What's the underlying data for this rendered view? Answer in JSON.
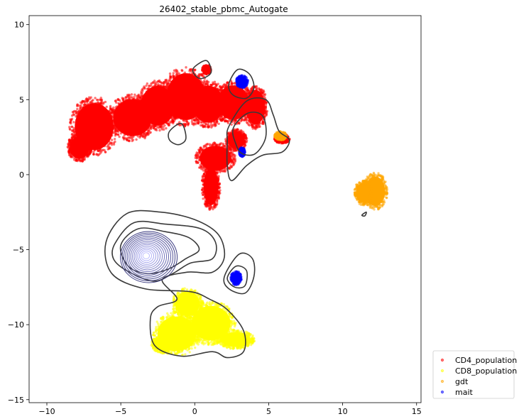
{
  "chart_data": {
    "type": "scatter",
    "title": "26402_stable_pbmc_Autogate",
    "xlabel": "",
    "ylabel": "",
    "xlim": [
      -11.2,
      15.3
    ],
    "ylim": [
      -15.2,
      10.6
    ],
    "xticks": [
      -10,
      -5,
      0,
      5,
      10,
      15
    ],
    "yticks": [
      -15,
      -10,
      -5,
      0,
      5,
      10
    ],
    "xtick_labels": [
      "−10",
      "−5",
      "0",
      "5",
      "10",
      "15"
    ],
    "ytick_labels": [
      "−15",
      "−10",
      "−5",
      "0",
      "5",
      "10"
    ],
    "grid": false,
    "legend_position": "lower-right outside",
    "series": [
      {
        "name": "CD4_population",
        "color": "#ff0000",
        "regions": [
          {
            "cx": -6.8,
            "cy": 3.2,
            "rx": 1.6,
            "ry": 1.9
          },
          {
            "cx": -7.8,
            "cy": 1.8,
            "rx": 0.8,
            "ry": 0.9
          },
          {
            "cx": -4.2,
            "cy": 3.8,
            "rx": 1.6,
            "ry": 1.5
          },
          {
            "cx": -2.5,
            "cy": 4.6,
            "rx": 1.4,
            "ry": 1.6
          },
          {
            "cx": -0.6,
            "cy": 5.2,
            "rx": 1.6,
            "ry": 1.9
          },
          {
            "cx": 0.9,
            "cy": 4.7,
            "rx": 1.3,
            "ry": 1.5
          },
          {
            "cx": 2.6,
            "cy": 4.8,
            "rx": 1.3,
            "ry": 1.4
          },
          {
            "cx": 4.1,
            "cy": 4.5,
            "rx": 0.8,
            "ry": 1.4
          },
          {
            "cx": 1.4,
            "cy": 1.1,
            "rx": 1.3,
            "ry": 1.0
          },
          {
            "cx": 1.1,
            "cy": -0.8,
            "rx": 0.6,
            "ry": 1.5
          },
          {
            "cx": 2.8,
            "cy": 2.3,
            "rx": 0.7,
            "ry": 0.7
          },
          {
            "cx": 5.9,
            "cy": 2.4,
            "rx": 0.5,
            "ry": 0.3
          },
          {
            "cx": 0.8,
            "cy": 7.0,
            "rx": 0.3,
            "ry": 0.3
          }
        ]
      },
      {
        "name": "CD8_population",
        "color": "#ffff00",
        "regions": [
          {
            "cx": -1.2,
            "cy": -10.6,
            "rx": 1.6,
            "ry": 1.4
          },
          {
            "cx": 1.1,
            "cy": -9.9,
            "rx": 1.6,
            "ry": 1.4
          },
          {
            "cx": 2.8,
            "cy": -11.0,
            "rx": 1.2,
            "ry": 0.6
          },
          {
            "cx": -0.5,
            "cy": -8.6,
            "rx": 1.0,
            "ry": 1.0
          },
          {
            "cx": -2.1,
            "cy": -11.3,
            "rx": 0.8,
            "ry": 0.6
          }
        ]
      },
      {
        "name": "gdt",
        "color": "#ffa500",
        "regions": [
          {
            "cx": 12.2,
            "cy": -1.1,
            "rx": 0.8,
            "ry": 1.2
          },
          {
            "cx": 11.4,
            "cy": -1.2,
            "rx": 0.6,
            "ry": 0.8
          },
          {
            "cx": 5.8,
            "cy": 2.6,
            "rx": 0.4,
            "ry": 0.3
          }
        ]
      },
      {
        "name": "mait",
        "color": "#0000ff",
        "regions": [
          {
            "cx": 3.2,
            "cy": 6.2,
            "rx": 0.4,
            "ry": 0.4
          },
          {
            "cx": 2.8,
            "cy": -6.9,
            "rx": 0.35,
            "ry": 0.45
          },
          {
            "cx": 3.2,
            "cy": 1.5,
            "rx": 0.2,
            "ry": 0.3
          }
        ]
      }
    ],
    "contours": {
      "dark": [
        [
          [
            0.0,
            7.2
          ],
          [
            0.8,
            7.6
          ],
          [
            1.1,
            6.8
          ],
          [
            0.4,
            6.4
          ],
          [
            -0.1,
            6.8
          ]
        ],
        [
          [
            2.3,
            6.0
          ],
          [
            2.9,
            7.0
          ],
          [
            3.7,
            6.7
          ],
          [
            4.0,
            5.8
          ],
          [
            3.5,
            5.1
          ],
          [
            2.6,
            5.3
          ]
        ],
        [
          [
            2.3,
            3.2
          ],
          [
            3.5,
            4.9
          ],
          [
            4.8,
            5.0
          ],
          [
            5.3,
            4.0
          ],
          [
            5.7,
            2.9
          ],
          [
            6.4,
            2.3
          ],
          [
            5.9,
            1.5
          ],
          [
            4.6,
            1.3
          ],
          [
            3.5,
            0.6
          ],
          [
            2.5,
            -0.4
          ],
          [
            2.2,
            0.6
          ],
          [
            2.2,
            2.2
          ]
        ],
        [
          [
            2.6,
            3.1
          ],
          [
            3.6,
            4.1
          ],
          [
            4.6,
            3.9
          ],
          [
            4.8,
            2.5
          ],
          [
            4.1,
            1.4
          ],
          [
            3.2,
            1.4
          ],
          [
            2.8,
            2.0
          ]
        ],
        [
          [
            -1.7,
            2.9
          ],
          [
            -0.9,
            3.4
          ],
          [
            -0.6,
            2.4
          ],
          [
            -1.1,
            2.0
          ],
          [
            -1.7,
            2.3
          ]
        ],
        [
          [
            -6.0,
            -4.5
          ],
          [
            -4.6,
            -2.6
          ],
          [
            -2.3,
            -2.5
          ],
          [
            0.0,
            -3.0
          ],
          [
            1.6,
            -4.0
          ],
          [
            2.0,
            -5.5
          ],
          [
            1.2,
            -6.5
          ],
          [
            -0.5,
            -6.5
          ],
          [
            -2.2,
            -7.0
          ],
          [
            -1.2,
            -8.3
          ],
          [
            -2.5,
            -8.8
          ],
          [
            -3.0,
            -9.6
          ],
          [
            -2.7,
            -11.4
          ],
          [
            -0.9,
            -12.1
          ],
          [
            1.2,
            -11.8
          ],
          [
            2.2,
            -12.2
          ],
          [
            3.3,
            -11.8
          ],
          [
            3.3,
            -10.4
          ],
          [
            2.2,
            -9.0
          ],
          [
            1.0,
            -8.3
          ],
          [
            -0.3,
            -7.8
          ],
          [
            -3.4,
            -7.6
          ],
          [
            -5.6,
            -6.6
          ]
        ],
        [
          [
            -5.4,
            -4.6
          ],
          [
            -4.1,
            -3.2
          ],
          [
            -2.0,
            -3.3
          ],
          [
            0.4,
            -3.6
          ],
          [
            1.4,
            -4.5
          ],
          [
            1.2,
            -5.6
          ],
          [
            -0.3,
            -5.9
          ],
          [
            -1.5,
            -6.6
          ],
          [
            -2.8,
            -7.1
          ],
          [
            -4.6,
            -6.4
          ],
          [
            -5.5,
            -5.6
          ]
        ],
        [
          [
            -5.0,
            -4.7
          ],
          [
            -3.8,
            -3.6
          ],
          [
            -2.0,
            -3.8
          ],
          [
            -0.4,
            -4.2
          ],
          [
            0.3,
            -5.0
          ],
          [
            -0.6,
            -5.6
          ],
          [
            -1.8,
            -6.3
          ],
          [
            -3.2,
            -6.6
          ],
          [
            -4.5,
            -6.1
          ]
        ],
        [
          [
            2.0,
            -6.8
          ],
          [
            3.0,
            -5.3
          ],
          [
            3.9,
            -5.6
          ],
          [
            4.0,
            -6.8
          ],
          [
            3.4,
            -7.9
          ],
          [
            2.3,
            -7.6
          ]
        ],
        [
          [
            2.2,
            -6.9
          ],
          [
            2.8,
            -6.1
          ],
          [
            3.5,
            -6.4
          ],
          [
            3.4,
            -7.4
          ],
          [
            2.7,
            -7.5
          ]
        ],
        [
          [
            11.3,
            -2.7
          ],
          [
            11.6,
            -2.5
          ],
          [
            11.5,
            -2.75
          ]
        ]
      ],
      "core_center": [
        -3.3,
        -5.4
      ],
      "core_levels": 14
    }
  },
  "legend": {
    "items": [
      {
        "label": "CD4_population",
        "color": "#ff0000"
      },
      {
        "label": "CD8_population",
        "color": "#ffff00"
      },
      {
        "label": "gdt",
        "color": "#ffa500"
      },
      {
        "label": "mait",
        "color": "#0000ff"
      }
    ]
  }
}
